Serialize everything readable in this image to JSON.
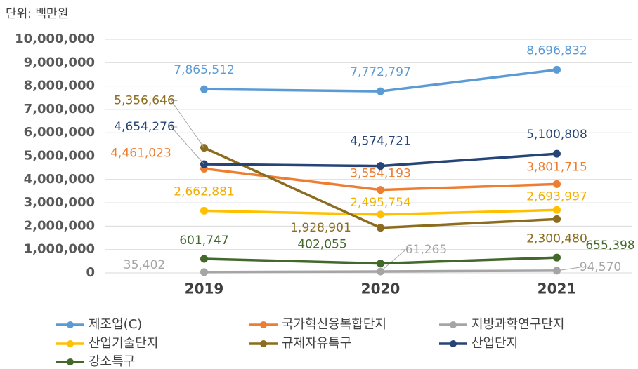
{
  "chart_data": {
    "type": "line",
    "annotation": "단위: 백만원",
    "categories": [
      "2019",
      "2020",
      "2021"
    ],
    "ylim": [
      0,
      10000000
    ],
    "yticks": [
      0,
      {
        "value": 1000000,
        "label": "1,000,000"
      },
      {
        "value": 2000000,
        "label": "2,000,000"
      },
      {
        "value": 3000000,
        "label": "3,000,000"
      },
      {
        "value": 4000000,
        "label": "4,000,000"
      },
      {
        "value": 5000000,
        "label": "5,000,000"
      },
      {
        "value": 6000000,
        "label": "6,000,000"
      },
      {
        "value": 7000000,
        "label": "7,000,000"
      },
      {
        "value": 8000000,
        "label": "8,000,000"
      },
      {
        "value": 9000000,
        "label": "9,000,000"
      },
      {
        "value": 10000000,
        "label": "10,000,000"
      }
    ],
    "grid": true,
    "legend": "bottom",
    "series": [
      {
        "name": "제조업(C)",
        "color": "#5b9bd5",
        "values": [
          7865512,
          7772797,
          8696832
        ],
        "value_labels": [
          "7,865,512",
          "7,772,797",
          "8,696,832"
        ]
      },
      {
        "name": "국가혁신융복합단지",
        "color": "#ed7d31",
        "values": [
          4461023,
          3554193,
          3801715
        ],
        "value_labels": [
          "4,461,023",
          "3,554,193",
          "3,801,715"
        ]
      },
      {
        "name": "지방과학연구단지",
        "color": "#a5a5a5",
        "values": [
          35402,
          61265,
          94570
        ],
        "value_labels": [
          "35,402",
          "61,265",
          "94,570"
        ]
      },
      {
        "name": "산업기술단지",
        "color": "#ffc000",
        "values": [
          2662881,
          2495754,
          2693997
        ],
        "value_labels": [
          "2,662,881",
          "2,495,754",
          "2,693,997"
        ]
      },
      {
        "name": "규제자유특구",
        "color": "#8c6d1f",
        "values": [
          5356646,
          1928901,
          2300480
        ],
        "value_labels": [
          "5,356,646",
          "1,928,901",
          "2,300,480"
        ]
      },
      {
        "name": "산업단지",
        "color": "#264478",
        "values": [
          4654276,
          4574721,
          5100808
        ],
        "value_labels": [
          "4,654,276",
          "4,574,721",
          "5,100,808"
        ]
      },
      {
        "name": "강소특구",
        "color": "#43682b",
        "values": [
          601747,
          402055,
          655398
        ],
        "value_labels": [
          "601,747",
          "402,055",
          "655,398"
        ]
      }
    ]
  }
}
